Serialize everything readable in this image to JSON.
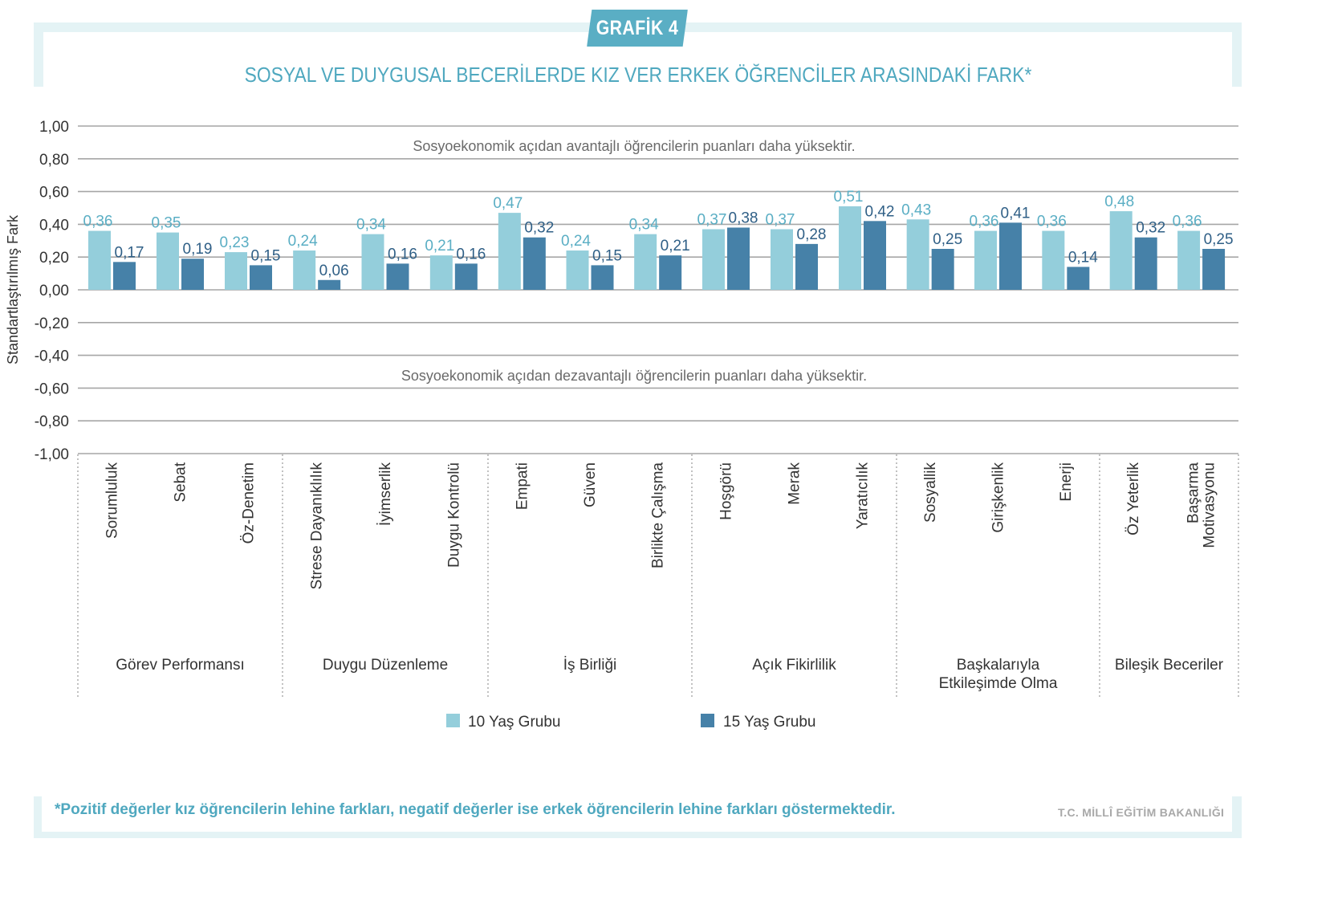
{
  "badge": "GRAFİK 4",
  "title": "SOSYAL VE DUYGUSAL BECERİLERDE KIZ VER ERKEK ÖĞRENCİLER ARASINDAKİ FARK*",
  "footnote": "*Pozitif değerler kız öğrencilerin lehine farkları, negatif değerler ise erkek öğrencilerin lehine farkları göstermektedir.",
  "publisher": "T.C. MİLLÎ EĞİTİM BAKANLIĞI",
  "colors": {
    "series_10": "#94cedb",
    "series_15": "#4681a8",
    "label_10": "#5aaec4",
    "label_15": "#2f5f86",
    "accent": "#5aaec4"
  },
  "chart_data": {
    "type": "bar",
    "title": "SOSYAL VE DUYGUSAL BECERİLERDE KIZ VER ERKEK ÖĞRENCİLER ARASINDAKİ FARK*",
    "xlabel": "",
    "ylabel": "Standartlaştırılmış Fark",
    "ylim": [
      -1.0,
      1.0
    ],
    "yticks": [
      "1,00",
      "0,80",
      "0,60",
      "0,40",
      "0,20",
      "0,00",
      "-0,20",
      "-0,40",
      "-0,60",
      "-0,80",
      "-1,00"
    ],
    "ytick_values": [
      1.0,
      0.8,
      0.6,
      0.4,
      0.2,
      0.0,
      -0.2,
      -0.4,
      -0.6,
      -0.8,
      -1.0
    ],
    "grid": true,
    "legend_position": "bottom",
    "annotations": {
      "positive": "Sosyoekonomik açıdan avantajlı öğrencilerin puanları daha yüksektir.",
      "negative": "Sosyoekonomik açıdan dezavantajlı öğrencilerin puanları daha yüksektir."
    },
    "categories": [
      "Sorumluluk",
      "Sebat",
      "Öz-Denetim",
      "Strese Dayanıklılık",
      "İyimserlik",
      "Duygu Kontrolü",
      "Empati",
      "Güven",
      "Birlikte Çalışma",
      "Hoşgörü",
      "Merak",
      "Yaratıcılık",
      "Sosyallik",
      "Girişkenlik",
      "Enerji",
      "Öz Yeterlik",
      "Başarma Motivasyonu"
    ],
    "category_lines": [
      [
        "Sorumluluk"
      ],
      [
        "Sebat"
      ],
      [
        "Öz-Denetim"
      ],
      [
        "Strese Dayanıklılık"
      ],
      [
        "İyimserlik"
      ],
      [
        "Duygu Kontrolü"
      ],
      [
        "Empati"
      ],
      [
        "Güven"
      ],
      [
        "Birlikte Çalışma"
      ],
      [
        "Hoşgörü"
      ],
      [
        "Merak"
      ],
      [
        "Yaratıcılık"
      ],
      [
        "Sosyallik"
      ],
      [
        "Girişkenlik"
      ],
      [
        "Enerji"
      ],
      [
        "Öz Yeterlik"
      ],
      [
        "Başarma",
        "Motivasyonu"
      ]
    ],
    "groups": [
      {
        "label": [
          "Görev Performansı"
        ],
        "count": 3
      },
      {
        "label": [
          "Duygu Düzenleme"
        ],
        "count": 3
      },
      {
        "label": [
          "İş Birliği"
        ],
        "count": 3
      },
      {
        "label": [
          "Açık Fikirlilik"
        ],
        "count": 3
      },
      {
        "label": [
          "Başkalarıyla",
          "Etkileşimde Olma"
        ],
        "count": 3
      },
      {
        "label": [
          "Bileşik Beceriler"
        ],
        "count": 2
      }
    ],
    "series": [
      {
        "name": "10 Yaş Grubu",
        "values": [
          0.36,
          0.35,
          0.23,
          0.24,
          0.34,
          0.21,
          0.47,
          0.24,
          0.34,
          0.37,
          0.37,
          0.51,
          0.43,
          0.36,
          0.36,
          0.48,
          0.36
        ],
        "labels": [
          "0,36",
          "0,35",
          "0,23",
          "0,24",
          "0,34",
          "0,21",
          "0,47",
          "0,24",
          "0,34",
          "0,37",
          "0,37",
          "0,51",
          "0,43",
          "0,36",
          "0,36",
          "0,48",
          "0,36"
        ]
      },
      {
        "name": "15 Yaş Grubu",
        "values": [
          0.17,
          0.19,
          0.15,
          0.06,
          0.16,
          0.16,
          0.32,
          0.15,
          0.21,
          0.38,
          0.28,
          0.42,
          0.25,
          0.41,
          0.14,
          0.32,
          0.25
        ],
        "labels": [
          "0,17",
          "0,19",
          "0,15",
          "0,06",
          "0,16",
          "0,16",
          "0,32",
          "0,15",
          "0,21",
          "0,38",
          "0,28",
          "0,42",
          "0,25",
          "0,41",
          "0,14",
          "0,32",
          "0,25"
        ]
      }
    ]
  }
}
